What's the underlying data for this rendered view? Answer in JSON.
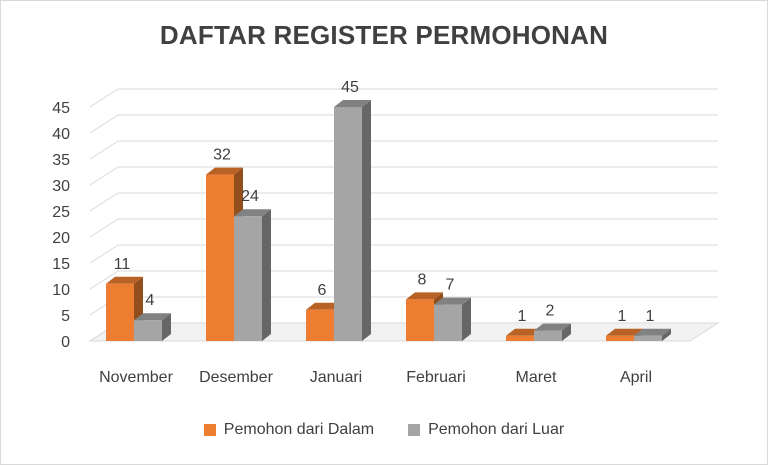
{
  "chart_data": {
    "type": "bar",
    "title": "DAFTAR REGISTER PERMOHONAN",
    "categories": [
      "November",
      "Desember",
      "Januari",
      "Februari",
      "Maret",
      "April"
    ],
    "series": [
      {
        "name": "Pemohon dari Dalam",
        "values": [
          11,
          32,
          6,
          8,
          1,
          1
        ],
        "color": "#ED7D31"
      },
      {
        "name": "Pemohon dari Luar",
        "values": [
          4,
          24,
          45,
          7,
          2,
          1
        ],
        "color": "#A5A5A5"
      }
    ],
    "ylim": [
      0,
      45
    ],
    "yticks": [
      0,
      5,
      10,
      15,
      20,
      25,
      30,
      35,
      40,
      45
    ],
    "grid": true,
    "three_d": true,
    "legend_position": "bottom"
  }
}
